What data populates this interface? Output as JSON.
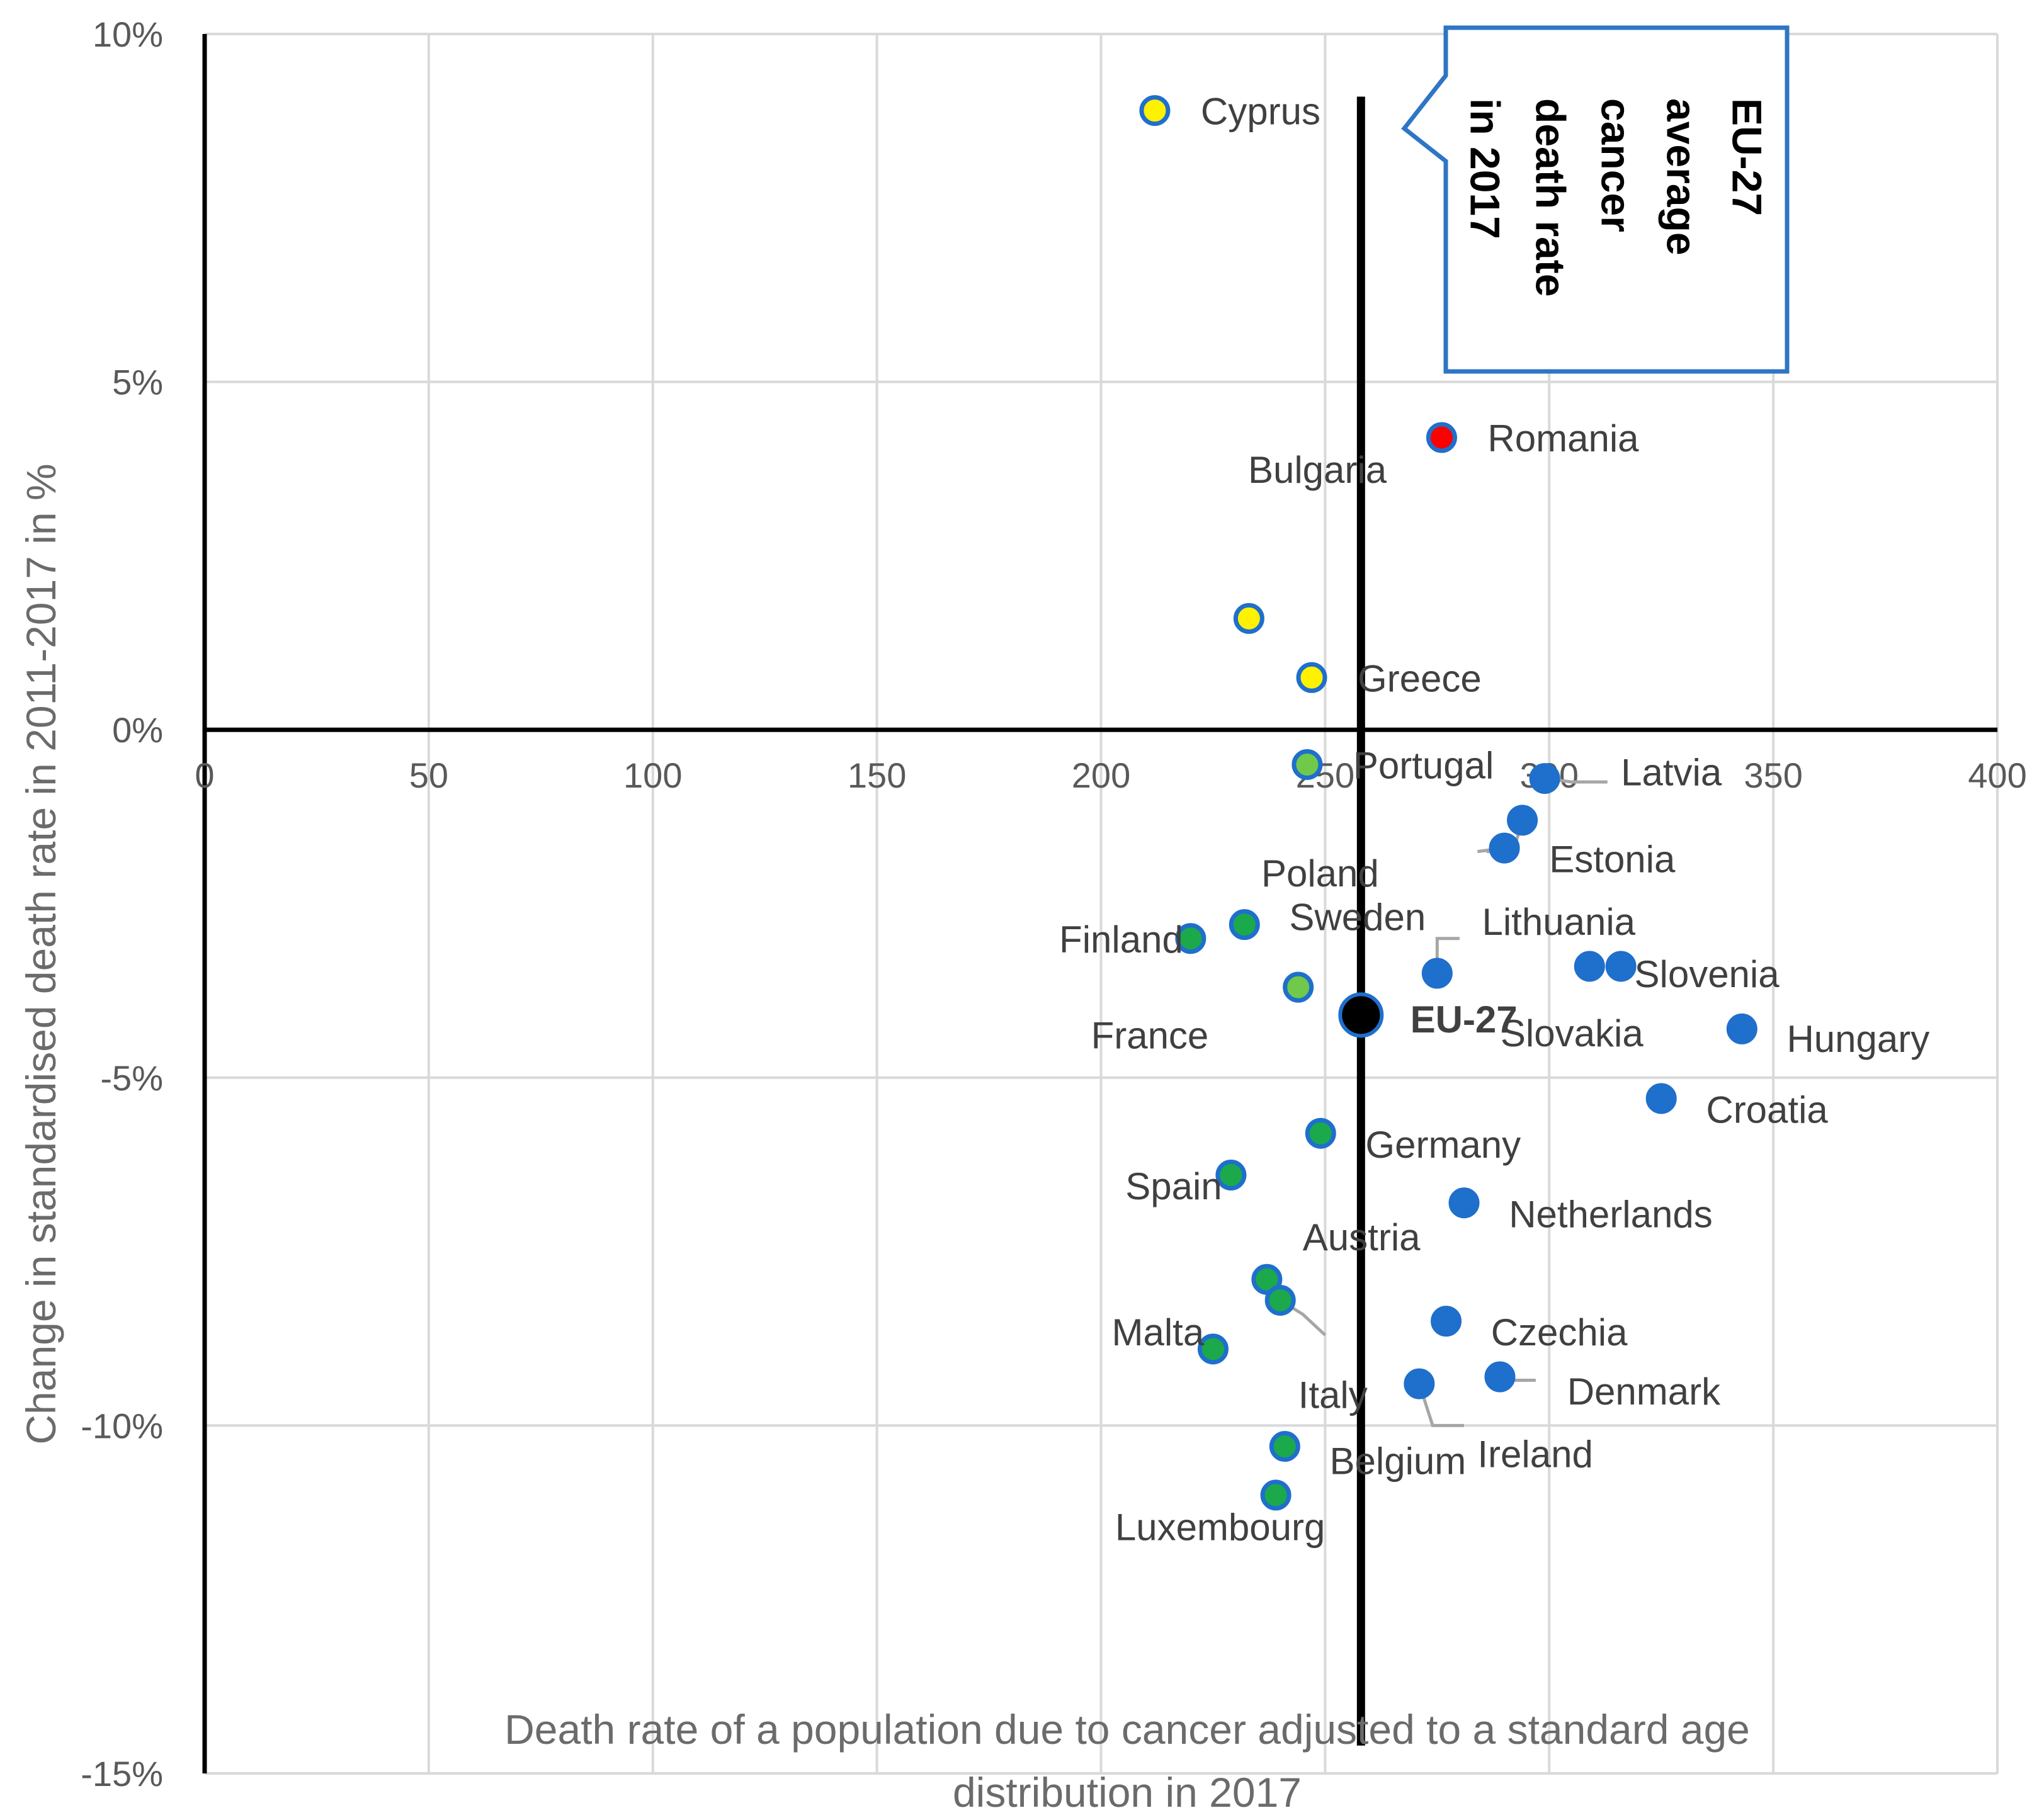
{
  "chart_data": {
    "type": "scatter",
    "title": "",
    "xlabel": "Death rate of a population due to cancer adjusted to a standard age distribution in 2017",
    "ylabel": "Change in standardised death rate in 2011-2017 in %",
    "xlim": [
      0,
      400
    ],
    "ylim": [
      -15,
      10
    ],
    "x_ticks": [
      0,
      50,
      100,
      150,
      200,
      250,
      300,
      350,
      400
    ],
    "x_tick_labels": [
      "0",
      "50",
      "100",
      "150",
      "200",
      "250",
      "300",
      "350",
      "400"
    ],
    "y_ticks": [
      10,
      5,
      0,
      -5,
      -10,
      -15
    ],
    "y_tick_labels": [
      "10%",
      "5%",
      "0%",
      "-5%",
      "-10%",
      "-15%"
    ],
    "grid": true,
    "reference_line": {
      "x": 258,
      "label": "EU-27 average cancer death rate in 2017"
    },
    "colors": {
      "yellow": "#FFF200",
      "red": "#FF0000",
      "light_green": "#70C94A",
      "green": "#1BA94C",
      "blue": "#1F6FCC",
      "outline": "#1F6FCC",
      "eu": "#000000",
      "callout_border": "#2F75C6"
    },
    "points": [
      {
        "name": "Cyprus",
        "x": 212,
        "y": 8.9,
        "color": "yellow"
      },
      {
        "name": "Romania",
        "x": 276,
        "y": 4.2,
        "color": "red"
      },
      {
        "name": "Bulgaria",
        "x": 233,
        "y": 1.6,
        "color": "yellow"
      },
      {
        "name": "Greece",
        "x": 247,
        "y": 0.75,
        "color": "yellow"
      },
      {
        "name": "Portugal",
        "x": 246,
        "y": -0.5,
        "color": "light_green"
      },
      {
        "name": "Latvia",
        "x": 299,
        "y": -0.7,
        "color": "blue"
      },
      {
        "name": "Estonia",
        "x": 294,
        "y": -1.3,
        "color": "blue"
      },
      {
        "name": "Poland",
        "x": 290,
        "y": -1.7,
        "color": "blue"
      },
      {
        "name": "Sweden",
        "x": 232,
        "y": -2.8,
        "color": "green"
      },
      {
        "name": "Finland",
        "x": 220,
        "y": -3.0,
        "color": "green"
      },
      {
        "name": "Lithuania",
        "x": 275,
        "y": -3.5,
        "color": "blue"
      },
      {
        "name": "Slovakia",
        "x": 309,
        "y": -3.4,
        "color": "blue"
      },
      {
        "name": "Slovenia",
        "x": 316,
        "y": -3.4,
        "color": "blue"
      },
      {
        "name": "France",
        "x": 244,
        "y": -3.7,
        "color": "light_green"
      },
      {
        "name": "EU-27",
        "x": 258,
        "y": -4.1,
        "color": "eu"
      },
      {
        "name": "Hungary",
        "x": 343,
        "y": -4.3,
        "color": "blue"
      },
      {
        "name": "Croatia",
        "x": 325,
        "y": -5.3,
        "color": "blue"
      },
      {
        "name": "Germany",
        "x": 249,
        "y": -5.8,
        "color": "green"
      },
      {
        "name": "Spain",
        "x": 229,
        "y": -6.4,
        "color": "green"
      },
      {
        "name": "Netherlands",
        "x": 281,
        "y": -6.8,
        "color": "blue"
      },
      {
        "name": "Austria",
        "x": 237,
        "y": -7.9,
        "color": "green"
      },
      {
        "name": "Italy",
        "x": 240,
        "y": -8.2,
        "color": "green"
      },
      {
        "name": "Czechia",
        "x": 277,
        "y": -8.5,
        "color": "blue"
      },
      {
        "name": "Malta",
        "x": 225,
        "y": -8.9,
        "color": "green"
      },
      {
        "name": "Denmark",
        "x": 289,
        "y": -9.3,
        "color": "blue"
      },
      {
        "name": "Ireland",
        "x": 271,
        "y": -9.4,
        "color": "blue"
      },
      {
        "name": "Belgium",
        "x": 241,
        "y": -10.3,
        "color": "green"
      },
      {
        "name": "Luxembourg",
        "x": 239,
        "y": -11.0,
        "color": "green"
      }
    ]
  }
}
